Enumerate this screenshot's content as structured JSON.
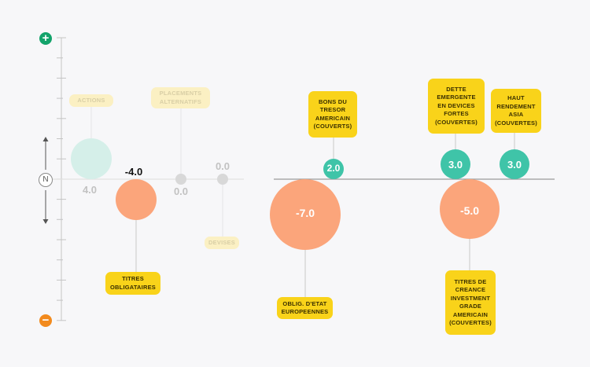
{
  "colors": {
    "positive": "#3fc4a8",
    "positive_faded": "#d5efe9",
    "negative": "#fba57b",
    "neutral": "#d8d8d8",
    "tag": "#f9d31a",
    "tag_faded": "#fbf0c3",
    "axis": "#c4c4c4",
    "plus": "#13a36b",
    "minus": "#f28a1d"
  },
  "scale": {
    "top_symbol": "+",
    "neutral_symbol": "N",
    "bottom_symbol": "−"
  },
  "chart_data": {
    "type": "bubble",
    "title": "",
    "xlabel": "",
    "ylabel": "",
    "items": [
      {
        "name": "ACTIONS",
        "value": 4.0,
        "label": "4.0",
        "faded": true
      },
      {
        "name": "TITRES OBLIGATAIRES",
        "value": -4.0,
        "label": "-4.0",
        "faded": false
      },
      {
        "name": "PLACEMENTS ALTERNATIFS",
        "value": 0.0,
        "label": "0.0",
        "faded": true
      },
      {
        "name": "DEVISES",
        "value": 0.0,
        "label": "0.0",
        "faded": true
      },
      {
        "name": "OBLIG. D'ETAT EUROPEENNES",
        "value": -7.0,
        "label": "-7.0",
        "faded": false
      },
      {
        "name": "BONS DU TRESOR AMERICAIN (COUVERTS)",
        "value": 2.0,
        "label": "2.0",
        "faded": false
      },
      {
        "name": "TITRES DE CREANCE INVESTMENT GRADE AMERICAIN (COUVERTES)",
        "value": -5.0,
        "label": "-5.0",
        "faded": false
      },
      {
        "name": "DETTE EMERGENTE EN DEVICES FORTES (COUVERTES)",
        "value": 3.0,
        "label": "3.0",
        "faded": false
      },
      {
        "name": "HAUT RENDEMENT ASIA (COUVERTES)",
        "value": 3.0,
        "label": "3.0",
        "faded": false
      }
    ]
  }
}
